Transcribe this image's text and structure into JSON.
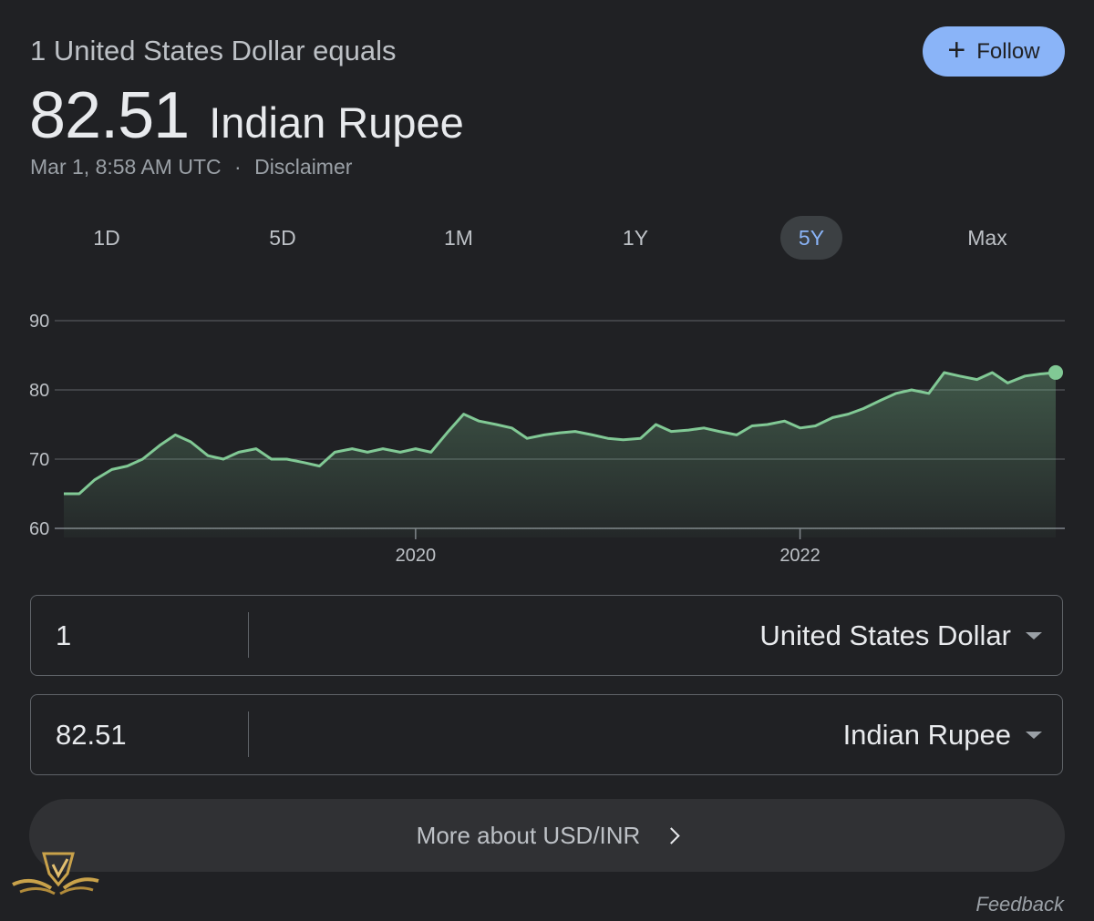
{
  "header": {
    "line": "1 United States Dollar equals",
    "rate": "82.51",
    "currency": "Indian Rupee",
    "timestamp": "Mar 1, 8:58 AM UTC",
    "separator": "·",
    "disclaimer": "Disclaimer"
  },
  "follow": {
    "label": "Follow",
    "icon": "plus-icon",
    "color": "#8ab4f8"
  },
  "tabs": [
    {
      "label": "1D",
      "active": false
    },
    {
      "label": "5D",
      "active": false
    },
    {
      "label": "1M",
      "active": false
    },
    {
      "label": "1Y",
      "active": false
    },
    {
      "label": "5Y",
      "active": true
    },
    {
      "label": "Max",
      "active": false
    }
  ],
  "chart_data": {
    "type": "area",
    "line_color": "#81c995",
    "ylim": [
      60,
      90
    ],
    "yticks": [
      "60",
      "70",
      "80",
      "90"
    ],
    "xticks": [
      {
        "label": "2020",
        "x": 2020.0
      },
      {
        "label": "2022",
        "x": 2022.0
      }
    ],
    "x_range": [
      2018.17,
      2023.33
    ],
    "series": [
      {
        "x": [
          2018.17,
          2018.25,
          2018.33,
          2018.42,
          2018.5,
          2018.58,
          2018.67,
          2018.75,
          2018.83,
          2018.92,
          2019.0,
          2019.08,
          2019.17,
          2019.25,
          2019.33,
          2019.42,
          2019.5,
          2019.58,
          2019.67,
          2019.75,
          2019.83,
          2019.92,
          2020.0,
          2020.08,
          2020.17,
          2020.25,
          2020.33,
          2020.42,
          2020.5,
          2020.58,
          2020.67,
          2020.75,
          2020.83,
          2020.92,
          2021.0,
          2021.08,
          2021.17,
          2021.25,
          2021.33,
          2021.42,
          2021.5,
          2021.58,
          2021.67,
          2021.75,
          2021.83,
          2021.92,
          2022.0,
          2022.08,
          2022.17,
          2022.25,
          2022.33,
          2022.42,
          2022.5,
          2022.58,
          2022.67,
          2022.75,
          2022.83,
          2022.92,
          2023.0,
          2023.08,
          2023.17,
          2023.25,
          2023.33
        ],
        "y": [
          65.0,
          65.0,
          67.0,
          68.5,
          69.0,
          70.0,
          72.0,
          73.5,
          72.5,
          70.5,
          70.0,
          71.0,
          71.5,
          70.0,
          70.0,
          69.5,
          69.0,
          71.0,
          71.5,
          71.0,
          71.5,
          71.0,
          71.5,
          71.0,
          74.0,
          76.5,
          75.5,
          75.0,
          74.5,
          73.0,
          73.5,
          73.8,
          74.0,
          73.5,
          73.0,
          72.8,
          73.0,
          75.0,
          74.0,
          74.2,
          74.5,
          74.0,
          73.5,
          74.8,
          75.0,
          75.5,
          74.5,
          74.8,
          76.0,
          76.5,
          77.3,
          78.5,
          79.5,
          80.0,
          79.5,
          82.5,
          82.0,
          81.5,
          82.5,
          81.0,
          82.0,
          82.3,
          82.51
        ]
      }
    ]
  },
  "converter": {
    "from_amount": "1",
    "from_currency": "United States Dollar",
    "to_amount": "82.51",
    "to_currency": "Indian Rupee"
  },
  "more": {
    "label": "More about USD/INR"
  },
  "feedback": "Feedback"
}
